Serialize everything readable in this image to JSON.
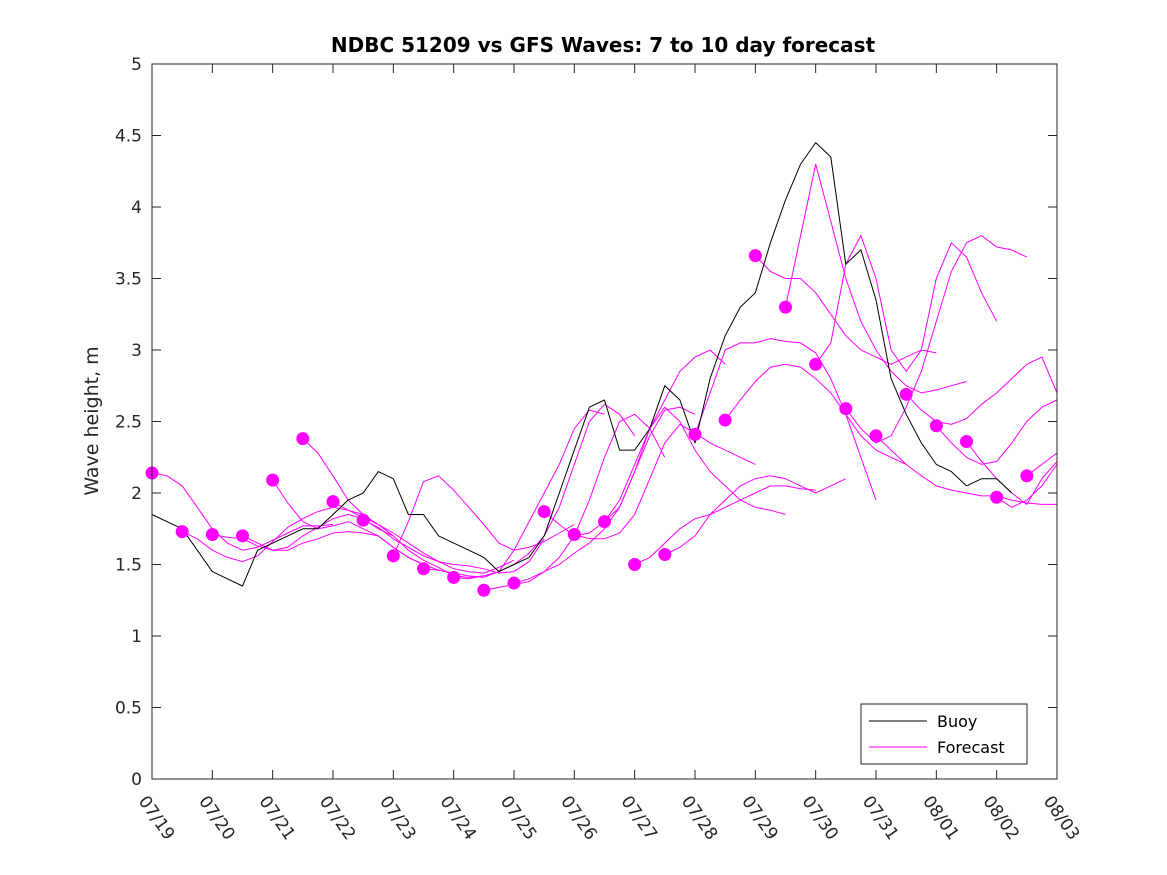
{
  "chart_data": {
    "type": "line",
    "title": "NDBC 51209 vs GFS Waves: 7 to 10 day forecast",
    "xlabel": "",
    "ylabel": "Wave height, m",
    "xlim": [
      "07/19",
      "08/03"
    ],
    "ylim": [
      0,
      5
    ],
    "xticks": [
      "07/19",
      "07/20",
      "07/21",
      "07/22",
      "07/23",
      "07/24",
      "07/25",
      "07/26",
      "07/27",
      "07/28",
      "07/29",
      "07/30",
      "07/31",
      "08/01",
      "08/02",
      "08/03"
    ],
    "yticks": [
      "0",
      "0.5",
      "1",
      "1.5",
      "2",
      "2.5",
      "3",
      "3.5",
      "4",
      "4.5",
      "5"
    ],
    "legend": {
      "placement": "bottom-right",
      "entries": [
        "Buoy",
        "Forecast"
      ]
    },
    "colors": {
      "buoy": "#000000",
      "forecast": "#ff00ff"
    },
    "grid": false,
    "buoy": {
      "name": "Buoy",
      "x": [
        "07/19 00:00",
        "07/19 12:00",
        "07/19 18:00",
        "07/20 00:00",
        "07/20 06:00",
        "07/20 12:00",
        "07/20 18:00",
        "07/21 00:00",
        "07/21 06:00",
        "07/21 12:00",
        "07/21 18:00",
        "07/22 00:00",
        "07/22 06:00",
        "07/22 12:00",
        "07/22 18:00",
        "07/23 00:00",
        "07/23 06:00",
        "07/23 12:00",
        "07/23 18:00",
        "07/24 00:00",
        "07/24 06:00",
        "07/24 12:00",
        "07/24 18:00",
        "07/25 00:00",
        "07/25 06:00",
        "07/25 12:00",
        "07/25 18:00",
        "07/26 00:00",
        "07/26 06:00",
        "07/26 12:00",
        "07/26 18:00",
        "07/27 00:00",
        "07/27 06:00",
        "07/27 12:00",
        "07/27 18:00",
        "07/28 00:00",
        "07/28 06:00",
        "07/28 12:00",
        "07/28 18:00",
        "07/29 00:00",
        "07/29 06:00",
        "07/29 12:00",
        "07/29 18:00",
        "07/30 00:00",
        "07/30 06:00",
        "07/30 12:00",
        "07/30 18:00",
        "07/31 00:00",
        "07/31 06:00",
        "07/31 12:00",
        "07/31 18:00",
        "08/01 00:00",
        "08/01 06:00",
        "08/01 12:00",
        "08/01 18:00",
        "08/02 00:00",
        "08/02 06:00"
      ],
      "values": [
        1.85,
        1.75,
        1.6,
        1.45,
        1.4,
        1.35,
        1.6,
        1.65,
        1.7,
        1.75,
        1.75,
        1.85,
        1.95,
        2.0,
        2.15,
        2.1,
        1.85,
        1.85,
        1.7,
        1.65,
        1.6,
        1.55,
        1.45,
        1.5,
        1.55,
        1.7,
        2.0,
        2.3,
        2.6,
        2.65,
        2.3,
        2.3,
        2.45,
        2.75,
        2.65,
        2.35,
        2.8,
        3.1,
        3.3,
        3.4,
        3.75,
        4.05,
        4.3,
        4.45,
        4.35,
        3.6,
        3.7,
        3.35,
        2.8,
        2.55,
        2.35,
        2.2,
        2.15,
        2.05,
        2.1,
        2.1,
        2.0
      ]
    },
    "forecast_runs": [
      {
        "x": [
          "07/19 00:00",
          "07/19 06:00",
          "07/19 12:00",
          "07/19 18:00",
          "07/20 00:00",
          "07/20 06:00",
          "07/20 12:00",
          "07/20 18:00",
          "07/21 00:00",
          "07/21 06:00",
          "07/21 12:00",
          "07/21 18:00",
          "07/22 00:00"
        ],
        "values": [
          2.14,
          2.12,
          2.05,
          1.9,
          1.75,
          1.65,
          1.6,
          1.62,
          1.67,
          1.72,
          1.77,
          1.77,
          1.78
        ]
      },
      {
        "x": [
          "07/19 12:00",
          "07/19 18:00",
          "07/20 00:00",
          "07/20 06:00",
          "07/20 12:00",
          "07/20 18:00",
          "07/21 00:00",
          "07/21 06:00",
          "07/21 12:00",
          "07/21 18:00",
          "07/22 00:00",
          "07/22 06:00",
          "07/22 12:00"
        ],
        "values": [
          1.73,
          1.68,
          1.6,
          1.55,
          1.52,
          1.56,
          1.66,
          1.76,
          1.82,
          1.87,
          1.9,
          1.88,
          1.85
        ]
      },
      {
        "x": [
          "07/20 00:00",
          "07/20 06:00",
          "07/20 12:00",
          "07/20 18:00",
          "07/21 00:00",
          "07/21 06:00",
          "07/21 12:00",
          "07/21 18:00",
          "07/22 00:00",
          "07/22 06:00",
          "07/22 12:00",
          "07/22 18:00",
          "07/23 00:00"
        ],
        "values": [
          1.71,
          1.69,
          1.68,
          1.63,
          1.6,
          1.62,
          1.7,
          1.76,
          1.82,
          1.85,
          1.82,
          1.75,
          1.7
        ]
      },
      {
        "x": [
          "07/20 12:00",
          "07/20 18:00",
          "07/21 00:00",
          "07/21 06:00",
          "07/21 12:00",
          "07/21 18:00",
          "07/22 00:00",
          "07/22 06:00",
          "07/22 12:00",
          "07/22 18:00",
          "07/23 00:00",
          "07/23 06:00",
          "07/23 12:00"
        ],
        "values": [
          1.7,
          1.65,
          1.6,
          1.6,
          1.65,
          1.68,
          1.72,
          1.73,
          1.72,
          1.7,
          1.62,
          1.55,
          1.5
        ]
      },
      {
        "x": [
          "07/21 00:00",
          "07/21 06:00",
          "07/21 12:00",
          "07/21 18:00",
          "07/22 00:00",
          "07/22 06:00",
          "07/22 12:00",
          "07/22 18:00",
          "07/23 00:00",
          "07/23 06:00",
          "07/23 12:00",
          "07/23 18:00",
          "07/24 00:00"
        ],
        "values": [
          2.09,
          1.93,
          1.8,
          1.75,
          1.77,
          1.8,
          1.75,
          1.7,
          1.62,
          1.55,
          1.5,
          1.46,
          1.44
        ]
      },
      {
        "x": [
          "07/21 12:00",
          "07/21 18:00",
          "07/22 00:00",
          "07/22 06:00",
          "07/22 12:00",
          "07/22 18:00",
          "07/23 00:00",
          "07/23 06:00",
          "07/23 12:00",
          "07/23 18:00",
          "07/24 00:00",
          "07/24 06:00",
          "07/24 12:00"
        ],
        "values": [
          2.38,
          2.28,
          2.12,
          1.95,
          1.85,
          1.78,
          1.7,
          1.6,
          1.53,
          1.48,
          1.42,
          1.41,
          1.42
        ]
      },
      {
        "x": [
          "07/22 00:00",
          "07/22 06:00",
          "07/22 12:00",
          "07/22 18:00",
          "07/23 00:00",
          "07/23 06:00",
          "07/23 12:00",
          "07/23 18:00",
          "07/24 00:00",
          "07/24 06:00",
          "07/24 12:00",
          "07/24 18:00",
          "07/25 00:00"
        ],
        "values": [
          1.94,
          1.88,
          1.83,
          1.78,
          1.72,
          1.65,
          1.58,
          1.52,
          1.47,
          1.45,
          1.44,
          1.48,
          1.53
        ]
      },
      {
        "x": [
          "07/22 12:00",
          "07/22 18:00",
          "07/23 00:00",
          "07/23 06:00",
          "07/23 12:00",
          "07/23 18:00",
          "07/24 00:00",
          "07/24 06:00",
          "07/24 12:00",
          "07/24 18:00",
          "07/25 00:00",
          "07/25 06:00",
          "07/25 12:00"
        ],
        "values": [
          1.81,
          1.76,
          1.68,
          1.62,
          1.56,
          1.52,
          1.5,
          1.49,
          1.47,
          1.44,
          1.45,
          1.52,
          1.68
        ]
      },
      {
        "x": [
          "07/23 00:00",
          "07/23 06:00",
          "07/23 12:00",
          "07/23 18:00",
          "07/24 00:00",
          "07/24 06:00",
          "07/24 12:00",
          "07/24 18:00",
          "07/25 00:00",
          "07/25 06:00",
          "07/25 12:00",
          "07/25 18:00",
          "07/26 00:00"
        ],
        "values": [
          1.56,
          1.8,
          2.08,
          2.12,
          2.02,
          1.9,
          1.78,
          1.65,
          1.6,
          1.62,
          1.66,
          1.72,
          1.78
        ]
      },
      {
        "x": [
          "07/23 12:00",
          "07/23 18:00",
          "07/24 00:00",
          "07/24 06:00",
          "07/24 12:00",
          "07/24 18:00",
          "07/25 00:00",
          "07/25 06:00",
          "07/25 12:00",
          "07/25 18:00",
          "07/26 00:00",
          "07/26 06:00",
          "07/26 12:00"
        ],
        "values": [
          1.47,
          1.46,
          1.44,
          1.42,
          1.41,
          1.45,
          1.6,
          1.8,
          2.0,
          2.2,
          2.45,
          2.58,
          2.55
        ]
      },
      {
        "x": [
          "07/24 00:00",
          "07/24 06:00",
          "07/24 12:00",
          "07/24 18:00",
          "07/25 00:00",
          "07/25 06:00",
          "07/25 12:00",
          "07/25 18:00",
          "07/26 00:00",
          "07/26 06:00",
          "07/26 12:00",
          "07/26 18:00",
          "07/27 00:00"
        ],
        "values": [
          1.41,
          1.4,
          1.42,
          1.45,
          1.5,
          1.58,
          1.7,
          1.9,
          2.2,
          2.5,
          2.62,
          2.55,
          2.4
        ]
      },
      {
        "x": [
          "07/24 12:00",
          "07/24 18:00",
          "07/25 00:00",
          "07/25 06:00",
          "07/25 12:00",
          "07/25 18:00",
          "07/26 00:00",
          "07/26 06:00",
          "07/26 12:00",
          "07/26 18:00",
          "07/27 00:00",
          "07/27 06:00",
          "07/27 12:00"
        ],
        "values": [
          1.32,
          1.34,
          1.36,
          1.38,
          1.45,
          1.55,
          1.7,
          1.95,
          2.25,
          2.5,
          2.55,
          2.45,
          2.25
        ]
      },
      {
        "x": [
          "07/25 00:00",
          "07/25 06:00",
          "07/25 12:00",
          "07/25 18:00",
          "07/26 00:00",
          "07/26 06:00",
          "07/26 12:00",
          "07/26 18:00",
          "07/27 00:00",
          "07/27 06:00",
          "07/27 12:00",
          "07/27 18:00",
          "07/28 00:00"
        ],
        "values": [
          1.37,
          1.4,
          1.45,
          1.5,
          1.58,
          1.65,
          1.75,
          1.9,
          2.15,
          2.4,
          2.58,
          2.6,
          2.55
        ]
      },
      {
        "x": [
          "07/25 12:00",
          "07/25 18:00",
          "07/26 00:00",
          "07/26 06:00",
          "07/26 12:00",
          "07/26 18:00",
          "07/27 00:00",
          "07/27 06:00",
          "07/27 12:00",
          "07/27 18:00",
          "07/28 00:00",
          "07/28 06:00",
          "07/28 12:00"
        ],
        "values": [
          1.87,
          1.78,
          1.7,
          1.72,
          1.8,
          1.95,
          2.2,
          2.45,
          2.65,
          2.85,
          2.95,
          3.0,
          2.9
        ]
      },
      {
        "x": [
          "07/26 00:00",
          "07/26 06:00",
          "07/26 12:00",
          "07/26 18:00",
          "07/27 00:00",
          "07/27 06:00",
          "07/27 12:00",
          "07/27 18:00",
          "07/28 00:00",
          "07/28 06:00",
          "07/28 12:00",
          "07/28 18:00",
          "07/29 00:00"
        ],
        "values": [
          1.71,
          1.68,
          1.68,
          1.72,
          1.85,
          2.1,
          2.35,
          2.48,
          2.42,
          2.35,
          2.3,
          2.25,
          2.2
        ]
      },
      {
        "x": [
          "07/26 12:00",
          "07/26 18:00",
          "07/27 00:00",
          "07/27 06:00",
          "07/27 12:00",
          "07/27 18:00",
          "07/28 00:00",
          "07/28 06:00",
          "07/28 12:00",
          "07/28 18:00",
          "07/29 00:00",
          "07/29 06:00",
          "07/29 12:00"
        ],
        "values": [
          1.8,
          1.9,
          2.15,
          2.45,
          2.6,
          2.5,
          2.3,
          2.15,
          2.05,
          1.95,
          1.9,
          1.88,
          1.85
        ]
      },
      {
        "x": [
          "07/27 00:00",
          "07/27 06:00",
          "07/27 12:00",
          "07/27 18:00",
          "07/28 00:00",
          "07/28 06:00",
          "07/28 12:00",
          "07/28 18:00",
          "07/29 00:00",
          "07/29 06:00",
          "07/29 12:00",
          "07/29 18:00",
          "07/30 00:00"
        ],
        "values": [
          1.5,
          1.55,
          1.65,
          1.75,
          1.82,
          1.85,
          1.9,
          1.95,
          2.0,
          2.05,
          2.05,
          2.03,
          2.02
        ]
      },
      {
        "x": [
          "07/27 12:00",
          "07/27 18:00",
          "07/28 00:00",
          "07/28 06:00",
          "07/28 12:00",
          "07/28 18:00",
          "07/29 00:00",
          "07/29 06:00",
          "07/29 12:00",
          "07/29 18:00",
          "07/30 00:00",
          "07/30 06:00",
          "07/30 12:00"
        ],
        "values": [
          1.57,
          1.62,
          1.7,
          1.85,
          1.95,
          2.05,
          2.1,
          2.12,
          2.1,
          2.05,
          2.0,
          2.05,
          2.1
        ]
      },
      {
        "x": [
          "07/28 00:00",
          "07/28 06:00",
          "07/28 12:00",
          "07/28 18:00",
          "07/29 00:00",
          "07/29 06:00",
          "07/29 12:00",
          "07/29 18:00",
          "07/30 00:00",
          "07/30 06:00",
          "07/30 12:00",
          "07/30 18:00",
          "07/31 00:00"
        ],
        "values": [
          2.41,
          2.7,
          3.0,
          3.05,
          3.05,
          3.08,
          3.06,
          3.05,
          2.98,
          2.8,
          2.55,
          2.25,
          1.95
        ]
      },
      {
        "x": [
          "07/28 12:00",
          "07/28 18:00",
          "07/29 00:00",
          "07/29 06:00",
          "07/29 12:00",
          "07/29 18:00",
          "07/30 00:00",
          "07/30 06:00",
          "07/30 12:00",
          "07/30 18:00",
          "07/31 00:00",
          "07/31 06:00",
          "07/31 12:00"
        ],
        "values": [
          2.51,
          2.65,
          2.78,
          2.88,
          2.9,
          2.88,
          2.8,
          2.7,
          2.55,
          2.4,
          2.3,
          2.25,
          2.2
        ]
      },
      {
        "x": [
          "07/29 00:00",
          "07/29 06:00",
          "07/29 12:00",
          "07/29 18:00",
          "07/30 00:00",
          "07/30 06:00",
          "07/30 12:00",
          "07/30 18:00",
          "07/31 00:00",
          "07/31 06:00",
          "07/31 12:00",
          "07/31 18:00",
          "08/01 00:00"
        ],
        "values": [
          3.66,
          3.55,
          3.5,
          3.5,
          3.4,
          3.25,
          3.1,
          3.0,
          2.95,
          2.9,
          2.95,
          3.0,
          2.98
        ]
      },
      {
        "x": [
          "07/29 12:00",
          "07/29 18:00",
          "07/30 00:00",
          "07/30 06:00",
          "07/30 12:00",
          "07/30 18:00",
          "07/31 00:00",
          "07/31 06:00",
          "07/31 12:00",
          "07/31 18:00",
          "08/01 00:00",
          "08/01 06:00",
          "08/01 12:00"
        ],
        "values": [
          3.3,
          3.8,
          4.3,
          3.9,
          3.5,
          3.2,
          3.0,
          2.85,
          2.75,
          2.7,
          2.72,
          2.75,
          2.78
        ]
      },
      {
        "x": [
          "07/30 00:00",
          "07/30 06:00",
          "07/30 12:00",
          "07/30 18:00",
          "07/31 00:00",
          "07/31 06:00",
          "07/31 12:00",
          "07/31 18:00",
          "08/01 00:00",
          "08/01 06:00",
          "08/01 12:00",
          "08/01 18:00",
          "08/02 00:00"
        ],
        "values": [
          2.9,
          3.05,
          3.6,
          3.8,
          3.5,
          3.0,
          2.85,
          3.0,
          3.5,
          3.75,
          3.65,
          3.4,
          3.2
        ]
      },
      {
        "x": [
          "07/30 12:00",
          "07/30 18:00",
          "07/31 00:00",
          "07/31 06:00",
          "07/31 12:00",
          "07/31 18:00",
          "08/01 00:00",
          "08/01 06:00",
          "08/01 12:00",
          "08/01 18:00",
          "08/02 00:00",
          "08/02 06:00",
          "08/02 12:00"
        ],
        "values": [
          2.59,
          2.45,
          2.35,
          2.4,
          2.6,
          2.85,
          3.2,
          3.55,
          3.75,
          3.8,
          3.72,
          3.7,
          3.65
        ]
      },
      {
        "x": [
          "07/31 00:00",
          "07/31 06:00",
          "07/31 12:00",
          "07/31 18:00",
          "08/01 00:00",
          "08/01 06:00",
          "08/01 12:00",
          "08/01 18:00",
          "08/02 00:00",
          "08/02 06:00",
          "08/02 12:00",
          "08/02 18:00",
          "08/03 00:00"
        ],
        "values": [
          2.4,
          2.3,
          2.2,
          2.12,
          2.05,
          2.02,
          2.0,
          1.98,
          1.98,
          1.95,
          1.93,
          1.92,
          1.92
        ]
      },
      {
        "x": [
          "07/31 12:00",
          "07/31 18:00",
          "08/01 00:00",
          "08/01 06:00",
          "08/01 12:00",
          "08/01 18:00",
          "08/02 00:00",
          "08/02 06:00",
          "08/02 12:00",
          "08/02 18:00",
          "08/03 00:00"
        ],
        "values": [
          2.69,
          2.58,
          2.5,
          2.48,
          2.52,
          2.62,
          2.7,
          2.8,
          2.9,
          2.95,
          2.7
        ]
      },
      {
        "x": [
          "08/01 00:00",
          "08/01 06:00",
          "08/01 12:00",
          "08/01 18:00",
          "08/02 00:00",
          "08/02 06:00",
          "08/02 12:00",
          "08/02 18:00",
          "08/03 00:00"
        ],
        "values": [
          2.47,
          2.35,
          2.25,
          2.2,
          2.22,
          2.35,
          2.5,
          2.6,
          2.65
        ]
      },
      {
        "x": [
          "08/01 12:00",
          "08/01 18:00",
          "08/02 00:00",
          "08/02 06:00",
          "08/02 12:00",
          "08/02 18:00",
          "08/03 00:00"
        ],
        "values": [
          2.36,
          2.22,
          2.1,
          2.0,
          1.92,
          2.1,
          2.22
        ]
      },
      {
        "x": [
          "08/02 00:00",
          "08/02 06:00",
          "08/02 12:00",
          "08/02 18:00",
          "08/03 00:00"
        ],
        "values": [
          1.97,
          1.9,
          1.95,
          2.05,
          2.2
        ]
      },
      {
        "x": [
          "08/02 12:00",
          "08/02 18:00",
          "08/03 00:00"
        ],
        "values": [
          2.12,
          2.2,
          2.28
        ]
      }
    ]
  }
}
